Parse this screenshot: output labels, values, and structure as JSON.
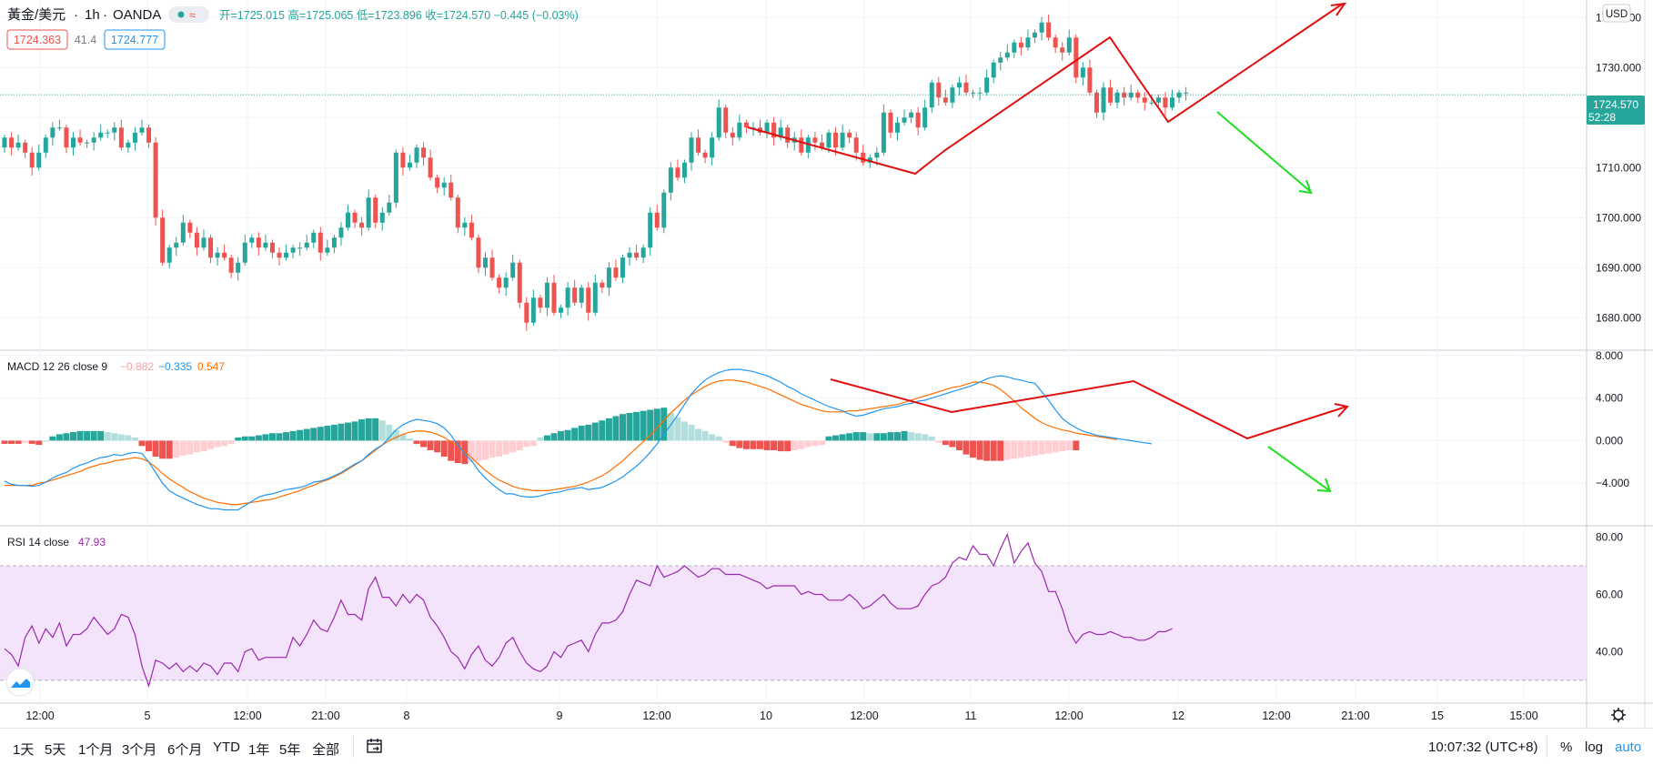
{
  "header": {
    "symbol": "黃金/美元",
    "interval": "1h",
    "source": "OANDA",
    "ohlc_line": "开=1725.015 高=1725.065 低=1723.896 收=1724.570 −0.445 (−0.03%)",
    "sell_price": "1724.363",
    "spread": "41.4",
    "buy_price": "1724.777",
    "currency": "USD"
  },
  "macd_legend": {
    "name": "MACD 12 26 close 9",
    "hist": "−0.882",
    "macd": "−0.335",
    "signal": "0.547"
  },
  "rsi_legend": {
    "name": "RSI 14 close",
    "value": "47.93"
  },
  "price_badge": {
    "price": "1724.570",
    "countdown": "52:28"
  },
  "colors": {
    "up": "#26a69a",
    "down": "#ef5350",
    "macd_line": "#2196f3",
    "signal_line": "#ff6d00",
    "rsi_line": "#9c27b0",
    "rsi_band": "#f3e4fb",
    "arrow_red": "#e01010",
    "arrow_green": "#22dd22"
  },
  "time_axis": [
    "12:00",
    "5",
    "12:00",
    "21:00",
    "8",
    "9",
    "12:00",
    "10",
    "12:00",
    "11",
    "12:00",
    "12",
    "12:00",
    "21:00",
    "15",
    "15:00"
  ],
  "bottom_bar": {
    "ranges": [
      "1天",
      "5天",
      "1个月",
      "3个月",
      "6个月",
      "YTD",
      "1年",
      "5年",
      "全部"
    ],
    "goto_icon": "calendar-goto-icon",
    "clock": "10:07:32 (UTC+8)",
    "percent_label": "%",
    "log_label": "log",
    "auto_label": "auto"
  },
  "chart_data": [
    {
      "type": "candlestick",
      "title": "黃金/美元 · 1h · OANDA",
      "x_categories": [
        "12:00",
        "5",
        "12:00",
        "21:00",
        "8",
        "9",
        "12:00",
        "10",
        "12:00",
        "11",
        "12:00",
        "12",
        "12:00"
      ],
      "y_ticks": [
        "1740.000",
        "1730.000",
        "1720.000",
        "1710.000",
        "1700.000",
        "1690.000",
        "1680.000"
      ],
      "ylim": [
        1673.5,
        1743.5
      ],
      "last_price": 1724.57,
      "grid": true,
      "closes": [
        1716,
        1714,
        1715,
        1713,
        1710,
        1713,
        1716,
        1718,
        1718,
        1714,
        1716,
        1715,
        1715,
        1716,
        1717,
        1717,
        1718,
        1714,
        1715,
        1717,
        1718,
        1715,
        1700,
        1691,
        1694,
        1695,
        1699,
        1697,
        1694,
        1696,
        1692,
        1693,
        1692,
        1689,
        1691,
        1695,
        1696,
        1694,
        1695,
        1693,
        1692,
        1693,
        1694,
        1694,
        1695,
        1697,
        1693,
        1694,
        1696,
        1698,
        1701,
        1699,
        1698,
        1704,
        1699,
        1701,
        1703,
        1713,
        1710,
        1711,
        1714,
        1712,
        1708,
        1706,
        1707,
        1704,
        1698,
        1699,
        1696,
        1690,
        1692,
        1688,
        1686,
        1688,
        1691,
        1683,
        1679,
        1684,
        1682,
        1687,
        1681,
        1682,
        1686,
        1683,
        1686,
        1681,
        1687,
        1686,
        1690,
        1688,
        1692,
        1693,
        1692,
        1694,
        1701,
        1698,
        1705,
        1710,
        1708,
        1711,
        1716,
        1713,
        1712,
        1716,
        1722,
        1717,
        1716,
        1719,
        1718,
        1718,
        1717,
        1719,
        1716,
        1718,
        1715,
        1716,
        1713,
        1716,
        1715,
        1714,
        1717,
        1714,
        1717,
        1716,
        1713,
        1711,
        1712,
        1713,
        1721,
        1717,
        1719,
        1720,
        1721,
        1718,
        1722,
        1727,
        1724,
        1723,
        1726,
        1727,
        1725,
        1725,
        1725,
        1728,
        1731,
        1732,
        1733,
        1735,
        1734,
        1736,
        1737,
        1739,
        1736,
        1734,
        1733,
        1736,
        1728,
        1730,
        1725,
        1721,
        1726,
        1723,
        1725,
        1724,
        1725,
        1724,
        1723,
        1723,
        1724,
        1722,
        1724,
        1725,
        1725
      ],
      "annotations": [
        "red channel lines",
        "red up-arrow",
        "green down-arrow"
      ]
    },
    {
      "type": "bar+line",
      "title": "MACD 12 26 close 9",
      "series": [
        {
          "name": "MACD"
        },
        {
          "name": "signal"
        },
        {
          "name": "histogram"
        }
      ],
      "y_ticks": [
        "8.000",
        "4.000",
        "0.000",
        "−4.000"
      ],
      "ylim": [
        -8,
        8.5
      ],
      "macd": [
        -3.8,
        -4.1,
        -4.2,
        -4.2,
        -4.3,
        -4.2,
        -3.9,
        -3.5,
        -3.2,
        -3.0,
        -2.6,
        -2.3,
        -2.1,
        -1.8,
        -1.6,
        -1.5,
        -1.3,
        -1.4,
        -1.2,
        -1.1,
        -1.2,
        -2.0,
        -3.0,
        -4.0,
        -4.7,
        -5.1,
        -5.4,
        -5.7,
        -6.0,
        -6.2,
        -6.4,
        -6.4,
        -6.5,
        -6.5,
        -6.5,
        -6.1,
        -5.7,
        -5.3,
        -5.1,
        -5.0,
        -4.8,
        -4.6,
        -4.5,
        -4.4,
        -4.2,
        -3.9,
        -3.8,
        -3.6,
        -3.3,
        -3.0,
        -2.6,
        -2.2,
        -1.9,
        -1.3,
        -0.8,
        -0.4,
        0.3,
        1.0,
        1.5,
        1.8,
        2.0,
        1.9,
        1.8,
        1.6,
        1.2,
        0.5,
        -0.4,
        -1.2,
        -1.9,
        -2.8,
        -3.5,
        -4.1,
        -4.6,
        -5.0,
        -5.0,
        -5.2,
        -5.3,
        -5.3,
        -5.2,
        -5.0,
        -4.9,
        -4.8,
        -4.6,
        -4.5,
        -4.4,
        -4.6,
        -4.5,
        -4.4,
        -4.1,
        -3.8,
        -3.4,
        -2.9,
        -2.4,
        -1.8,
        -1.1,
        -0.3,
        0.6,
        1.5,
        2.4,
        3.4,
        4.4,
        5.1,
        5.7,
        6.1,
        6.4,
        6.6,
        6.7,
        6.7,
        6.6,
        6.5,
        6.3,
        6.1,
        5.8,
        5.5,
        5.1,
        4.8,
        4.4,
        4.1,
        3.8,
        3.5,
        3.2,
        3.0,
        2.8,
        2.5,
        2.3,
        2.4,
        2.6,
        2.8,
        3.0,
        3.1,
        3.2,
        3.4,
        3.5,
        3.7,
        3.8,
        4.0,
        4.2,
        4.4,
        4.6,
        4.8,
        5.0,
        5.2,
        5.5,
        5.8,
        6.0,
        6.1,
        6.0,
        5.8,
        5.7,
        5.5,
        5.4,
        4.6,
        3.8,
        2.9,
        2.1,
        1.6,
        1.2,
        0.9,
        0.7,
        0.5,
        0.4,
        0.3,
        0.2,
        0.1,
        0.0,
        -0.1,
        -0.2,
        -0.3
      ],
      "signal": [
        -4.2,
        -4.2,
        -4.2,
        -4.2,
        -4.2,
        -4.0,
        -3.9,
        -3.7,
        -3.5,
        -3.3,
        -3.1,
        -2.9,
        -2.6,
        -2.4,
        -2.2,
        -2.1,
        -1.9,
        -1.8,
        -1.7,
        -1.6,
        -1.7,
        -2.0,
        -2.5,
        -3.1,
        -3.6,
        -4.0,
        -4.4,
        -4.8,
        -5.1,
        -5.4,
        -5.6,
        -5.8,
        -5.9,
        -6.0,
        -6.0,
        -5.9,
        -5.8,
        -5.7,
        -5.6,
        -5.5,
        -5.3,
        -5.1,
        -4.9,
        -4.7,
        -4.4,
        -4.2,
        -3.9,
        -3.7,
        -3.4,
        -3.1,
        -2.7,
        -2.3,
        -1.9,
        -1.4,
        -0.9,
        -0.4,
        0.0,
        0.3,
        0.6,
        0.8,
        0.9,
        0.9,
        0.8,
        0.6,
        0.3,
        -0.1,
        -0.5,
        -1.0,
        -1.6,
        -2.2,
        -2.8,
        -3.3,
        -3.7,
        -4.0,
        -4.3,
        -4.5,
        -4.6,
        -4.7,
        -4.7,
        -4.7,
        -4.6,
        -4.5,
        -4.4,
        -4.3,
        -4.1,
        -3.9,
        -3.6,
        -3.3,
        -2.9,
        -2.4,
        -1.9,
        -1.3,
        -0.7,
        -0.1,
        0.5,
        1.2,
        1.9,
        2.6,
        3.2,
        3.8,
        4.3,
        4.7,
        5.1,
        5.4,
        5.6,
        5.7,
        5.7,
        5.6,
        5.5,
        5.3,
        5.1,
        4.9,
        4.6,
        4.3,
        4.0,
        3.7,
        3.4,
        3.2,
        3.0,
        2.8,
        2.7,
        2.7,
        2.7,
        2.8,
        2.8,
        2.9,
        3.0,
        3.1,
        3.2,
        3.3,
        3.4,
        3.6,
        3.8,
        4.0,
        4.2,
        4.4,
        4.6,
        4.8,
        5.0,
        5.1,
        5.3,
        5.5,
        5.5,
        5.4,
        5.2,
        4.8,
        4.3,
        3.7,
        3.1,
        2.6,
        2.1,
        1.7,
        1.4,
        1.2,
        1.0,
        0.9,
        0.7,
        0.6,
        0.5,
        0.4,
        0.3,
        0.2,
        0.1
      ],
      "hist": [
        -0.3,
        -0.3,
        -0.3,
        -0.2,
        -0.3,
        -0.4,
        0.0,
        0.4,
        0.6,
        0.7,
        0.8,
        0.9,
        0.9,
        0.9,
        0.9,
        0.8,
        0.7,
        0.6,
        0.5,
        0.3,
        -0.5,
        -1.0,
        -1.5,
        -1.7,
        -1.7,
        -1.6,
        -1.4,
        -1.3,
        -1.1,
        -1.0,
        -0.8,
        -0.6,
        -0.5,
        -0.3,
        0.3,
        0.4,
        0.4,
        0.5,
        0.6,
        0.7,
        0.7,
        0.8,
        0.9,
        1.0,
        1.1,
        1.2,
        1.3,
        1.4,
        1.5,
        1.6,
        1.7,
        1.8,
        2.0,
        2.1,
        2.1,
        1.9,
        1.5,
        1.0,
        0.6,
        0.2,
        -0.3,
        -0.6,
        -0.9,
        -1.1,
        -1.5,
        -1.9,
        -2.1,
        -2.2,
        -2.0,
        -1.9,
        -1.8,
        -1.6,
        -1.5,
        -1.3,
        -1.1,
        -0.9,
        -0.6,
        -0.5,
        0.3,
        0.5,
        0.7,
        0.9,
        1.0,
        1.2,
        1.4,
        1.5,
        1.7,
        1.9,
        2.1,
        2.3,
        2.5,
        2.6,
        2.7,
        2.8,
        2.9,
        3.0,
        3.1,
        2.6,
        2.2,
        1.8,
        1.5,
        1.1,
        0.9,
        0.6,
        0.4,
        -0.2,
        -0.5,
        -0.7,
        -0.8,
        -0.8,
        -0.8,
        -0.9,
        -0.9,
        -1.0,
        -1.0,
        -0.9,
        -0.8,
        -0.6,
        -0.5,
        -0.4,
        0.4,
        0.5,
        0.6,
        0.7,
        0.8,
        0.8,
        0.7,
        0.7,
        0.7,
        0.8,
        0.8,
        0.9,
        0.8,
        0.7,
        0.6,
        0.4,
        -0.2,
        -0.4,
        -0.6,
        -0.9,
        -1.3,
        -1.6,
        -1.8,
        -1.9,
        -1.9,
        -1.9,
        -1.8,
        -1.7,
        -1.6,
        -1.5,
        -1.4,
        -1.3,
        -1.2,
        -1.1,
        -1.0,
        -0.9,
        -0.9
      ]
    },
    {
      "type": "line",
      "title": "RSI 14 close",
      "series": [
        {
          "name": "RSI"
        }
      ],
      "y_ticks": [
        "80.00",
        "60.00",
        "40.00"
      ],
      "ylim": [
        22,
        84
      ],
      "band": [
        30,
        70
      ],
      "values": [
        41,
        39,
        35,
        45,
        49,
        43,
        48,
        45,
        50,
        42,
        46,
        46,
        48,
        52,
        49,
        46,
        48,
        53,
        52,
        46,
        35,
        28,
        37,
        36,
        34,
        36,
        33,
        35,
        33,
        36,
        35,
        32,
        36,
        36,
        33,
        40,
        41,
        37,
        38,
        38,
        38,
        38,
        45,
        42,
        46,
        51,
        48,
        47,
        52,
        58,
        53,
        53,
        51,
        62,
        66,
        59,
        59,
        56,
        60,
        57,
        60,
        58,
        52,
        49,
        45,
        40,
        38,
        34,
        39,
        42,
        37,
        35,
        38,
        43,
        45,
        40,
        36,
        34,
        33,
        35,
        40,
        38,
        42,
        43,
        44,
        40,
        46,
        50,
        50,
        51,
        54,
        60,
        65,
        64,
        63,
        70,
        66,
        67,
        68,
        70,
        68,
        66,
        67,
        69,
        69,
        67,
        67,
        67,
        66,
        65,
        64,
        62,
        63,
        63,
        63,
        63,
        60,
        61,
        60,
        60,
        58,
        58,
        58,
        60,
        58,
        55,
        56,
        58,
        60,
        57,
        55,
        55,
        55,
        56,
        60,
        63,
        64,
        66,
        71,
        73,
        72,
        77,
        74,
        74,
        70,
        76,
        81,
        71,
        75,
        78,
        71,
        68,
        61,
        61,
        55,
        47,
        43,
        46,
        47,
        46,
        46,
        47,
        46,
        45,
        45,
        44,
        44,
        45,
        47,
        47,
        48
      ]
    }
  ]
}
